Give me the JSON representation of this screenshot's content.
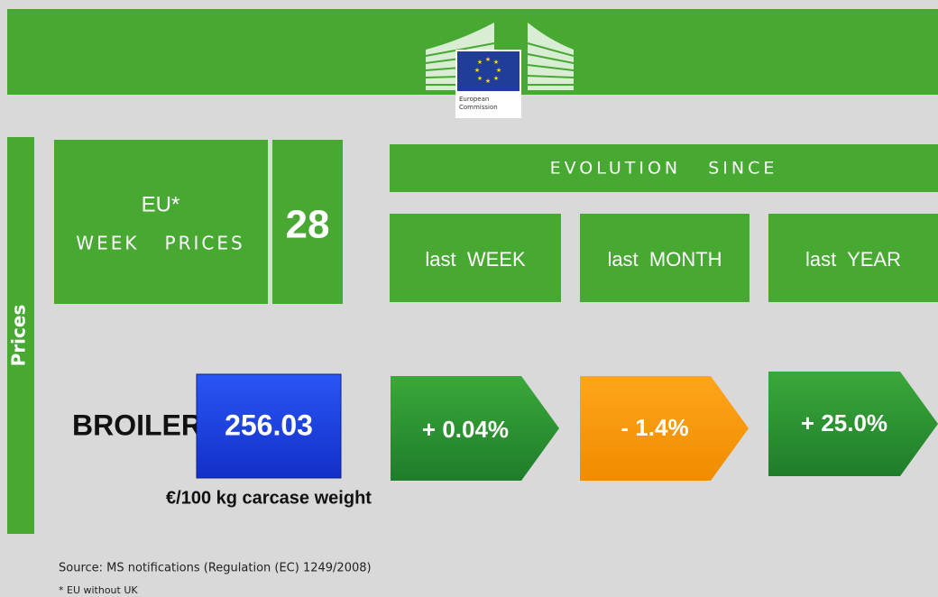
{
  "header": {
    "logo_line1": "European",
    "logo_line2": "Commission"
  },
  "side_label": "Prices",
  "week_box": {
    "line1": "EU*",
    "line2": "WEEK   PRICES",
    "week": "28"
  },
  "evolution": {
    "title": "EVOLUTION   SINCE",
    "columns": [
      "last  WEEK",
      "last  MONTH",
      "last  YEAR"
    ]
  },
  "product": {
    "name": "BROILER",
    "price": "256.03",
    "unit": "€/100 kg carcase weight",
    "changes": [
      "+ 0.04%",
      "- 1.4%",
      "+ 25.0%"
    ]
  },
  "footer": {
    "source": "Source: MS notifications (Regulation (EC) 1249/2008)",
    "note": "* EU without UK"
  }
}
